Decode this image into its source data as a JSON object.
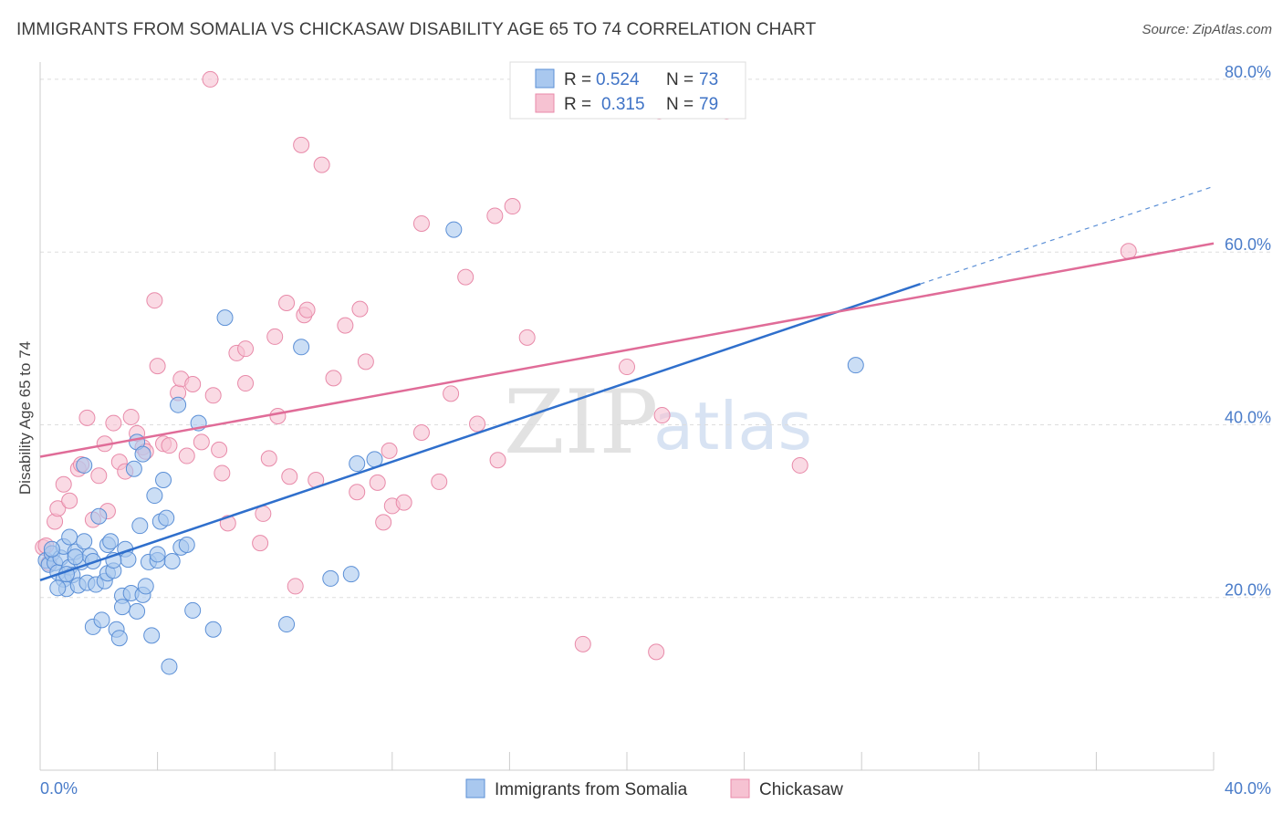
{
  "header": {
    "title": "IMMIGRANTS FROM SOMALIA VS CHICKASAW DISABILITY AGE 65 TO 74 CORRELATION CHART",
    "source": "Source: ZipAtlas.com"
  },
  "watermark": {
    "zip": "ZIP",
    "atlas": "atlas"
  },
  "colors": {
    "blue_fill": "#a9c8ef",
    "blue_stroke": "#5b8fd6",
    "blue_line": "#2f6fcc",
    "pink_fill": "#f6c2d2",
    "pink_stroke": "#e88aa9",
    "pink_line": "#e06c98",
    "grid": "#dddddd",
    "tick_label": "#4a7cc9"
  },
  "legend": {
    "rows": [
      {
        "r_label": "R =",
        "r_value": "0.524",
        "n_label": "N =",
        "n_value": "73"
      },
      {
        "r_label": "R =",
        "r_value": "0.315",
        "n_label": "N =",
        "n_value": "79"
      }
    ]
  },
  "chart_data": {
    "type": "scatter",
    "title": "IMMIGRANTS FROM SOMALIA VS CHICKASAW DISABILITY AGE 65 TO 74 CORRELATION CHART",
    "xlabel": "",
    "ylabel": "Disability Age 65 to 74",
    "xlim": [
      0,
      40
    ],
    "ylim": [
      0,
      82
    ],
    "x_tick_labels": [
      {
        "value": 0,
        "label": "0.0%"
      },
      {
        "value": 40,
        "label": "40.0%"
      }
    ],
    "x_minor_ticks": [
      0,
      4,
      8,
      12,
      16,
      20,
      24,
      28,
      32,
      36,
      40
    ],
    "y_tick_labels": [
      {
        "value": 20,
        "label": "20.0%"
      },
      {
        "value": 40,
        "label": "40.0%"
      },
      {
        "value": 60,
        "label": "60.0%"
      },
      {
        "value": 80,
        "label": "80.0%"
      }
    ],
    "grid": true,
    "legend_position": "top-center",
    "series": [
      {
        "name": "Immigrants from Somalia",
        "color": "#a9c8ef",
        "trend": {
          "x": [
            0,
            30
          ],
          "y": [
            22.0,
            56.3
          ],
          "dashed_to": [
            40,
            67.6
          ]
        },
        "points": [
          [
            0.2,
            24.3
          ],
          [
            0.3,
            23.8
          ],
          [
            0.4,
            25.1
          ],
          [
            0.5,
            24.0
          ],
          [
            0.6,
            22.9
          ],
          [
            0.7,
            24.6
          ],
          [
            0.8,
            22.1
          ],
          [
            0.8,
            25.9
          ],
          [
            0.9,
            21.0
          ],
          [
            1.0,
            27.0
          ],
          [
            1.0,
            23.5
          ],
          [
            1.1,
            22.6
          ],
          [
            1.2,
            25.3
          ],
          [
            1.3,
            21.4
          ],
          [
            1.4,
            24.1
          ],
          [
            1.5,
            26.5
          ],
          [
            1.6,
            21.7
          ],
          [
            1.7,
            24.8
          ],
          [
            1.8,
            16.6
          ],
          [
            1.9,
            21.5
          ],
          [
            2.0,
            29.4
          ],
          [
            2.1,
            17.4
          ],
          [
            2.2,
            21.9
          ],
          [
            2.3,
            26.1
          ],
          [
            2.3,
            22.8
          ],
          [
            2.4,
            26.5
          ],
          [
            2.5,
            23.1
          ],
          [
            2.6,
            16.3
          ],
          [
            2.7,
            15.3
          ],
          [
            2.8,
            20.2
          ],
          [
            2.9,
            25.6
          ],
          [
            3.0,
            24.4
          ],
          [
            3.1,
            20.5
          ],
          [
            3.2,
            34.9
          ],
          [
            3.3,
            18.4
          ],
          [
            3.4,
            28.3
          ],
          [
            3.5,
            20.3
          ],
          [
            3.6,
            21.3
          ],
          [
            3.7,
            24.1
          ],
          [
            3.8,
            15.6
          ],
          [
            3.9,
            31.8
          ],
          [
            4.0,
            24.3
          ],
          [
            4.1,
            28.8
          ],
          [
            4.2,
            33.6
          ],
          [
            4.3,
            29.2
          ],
          [
            4.4,
            12.0
          ],
          [
            4.5,
            24.2
          ],
          [
            4.7,
            42.3
          ],
          [
            4.8,
            25.8
          ],
          [
            5.0,
            26.1
          ],
          [
            5.2,
            18.5
          ],
          [
            5.4,
            40.2
          ],
          [
            5.9,
            16.3
          ],
          [
            6.3,
            52.4
          ],
          [
            8.4,
            16.9
          ],
          [
            8.9,
            49.0
          ],
          [
            9.9,
            22.2
          ],
          [
            10.6,
            22.7
          ],
          [
            10.8,
            35.5
          ],
          [
            11.4,
            36.0
          ],
          [
            14.1,
            62.6
          ],
          [
            27.8,
            46.9
          ],
          [
            1.5,
            35.3
          ],
          [
            3.3,
            38.0
          ],
          [
            0.4,
            25.6
          ],
          [
            0.6,
            21.1
          ],
          [
            1.2,
            24.7
          ],
          [
            2.8,
            18.9
          ],
          [
            3.5,
            36.6
          ],
          [
            1.8,
            24.2
          ],
          [
            2.5,
            24.3
          ],
          [
            4.0,
            25.0
          ],
          [
            0.9,
            22.7
          ]
        ]
      },
      {
        "name": "Chickasaw",
        "color": "#f6c2d2",
        "trend": {
          "x": [
            0,
            40
          ],
          "y": [
            36.3,
            61.0
          ]
        },
        "points": [
          [
            0.1,
            25.8
          ],
          [
            0.2,
            26.0
          ],
          [
            0.3,
            24.0
          ],
          [
            0.5,
            28.8
          ],
          [
            0.6,
            30.3
          ],
          [
            0.8,
            33.1
          ],
          [
            1.0,
            31.2
          ],
          [
            1.3,
            34.9
          ],
          [
            1.4,
            35.4
          ],
          [
            1.6,
            40.8
          ],
          [
            1.8,
            29.0
          ],
          [
            2.0,
            34.1
          ],
          [
            2.2,
            37.8
          ],
          [
            2.3,
            30.0
          ],
          [
            2.5,
            40.2
          ],
          [
            2.7,
            35.7
          ],
          [
            2.9,
            34.6
          ],
          [
            3.1,
            40.9
          ],
          [
            3.3,
            39.0
          ],
          [
            3.5,
            37.4
          ],
          [
            3.6,
            36.9
          ],
          [
            3.9,
            54.4
          ],
          [
            4.0,
            46.8
          ],
          [
            4.2,
            37.8
          ],
          [
            4.4,
            37.6
          ],
          [
            4.7,
            43.7
          ],
          [
            4.8,
            45.3
          ],
          [
            5.0,
            36.4
          ],
          [
            5.2,
            44.7
          ],
          [
            5.5,
            38.0
          ],
          [
            5.9,
            43.4
          ],
          [
            6.1,
            37.1
          ],
          [
            6.2,
            34.4
          ],
          [
            6.4,
            28.6
          ],
          [
            6.7,
            48.3
          ],
          [
            7.0,
            48.8
          ],
          [
            7.0,
            44.8
          ],
          [
            7.5,
            26.3
          ],
          [
            7.6,
            29.7
          ],
          [
            7.8,
            36.1
          ],
          [
            8.0,
            50.2
          ],
          [
            8.1,
            41.0
          ],
          [
            8.4,
            54.1
          ],
          [
            8.5,
            34.0
          ],
          [
            8.7,
            21.3
          ],
          [
            8.9,
            72.4
          ],
          [
            9.0,
            52.7
          ],
          [
            9.1,
            53.3
          ],
          [
            9.4,
            33.6
          ],
          [
            9.6,
            70.1
          ],
          [
            10.0,
            45.4
          ],
          [
            10.4,
            51.5
          ],
          [
            10.8,
            32.2
          ],
          [
            10.9,
            53.4
          ],
          [
            11.1,
            47.3
          ],
          [
            11.5,
            33.3
          ],
          [
            11.7,
            28.7
          ],
          [
            11.9,
            37.0
          ],
          [
            12.0,
            30.6
          ],
          [
            12.4,
            31.0
          ],
          [
            13.0,
            63.3
          ],
          [
            13.0,
            39.1
          ],
          [
            13.6,
            33.4
          ],
          [
            14.0,
            43.6
          ],
          [
            14.5,
            57.1
          ],
          [
            14.9,
            40.1
          ],
          [
            15.5,
            64.2
          ],
          [
            15.6,
            35.9
          ],
          [
            16.1,
            65.3
          ],
          [
            16.6,
            50.1
          ],
          [
            18.5,
            14.6
          ],
          [
            20.0,
            46.7
          ],
          [
            21.0,
            13.7
          ],
          [
            21.1,
            76.3
          ],
          [
            21.2,
            41.1
          ],
          [
            23.4,
            76.3
          ],
          [
            25.9,
            35.3
          ],
          [
            37.1,
            60.1
          ],
          [
            5.8,
            80.0
          ]
        ]
      }
    ]
  },
  "bottom_legend": {
    "items": [
      {
        "label": "Immigrants from Somalia"
      },
      {
        "label": "Chickasaw"
      }
    ]
  }
}
